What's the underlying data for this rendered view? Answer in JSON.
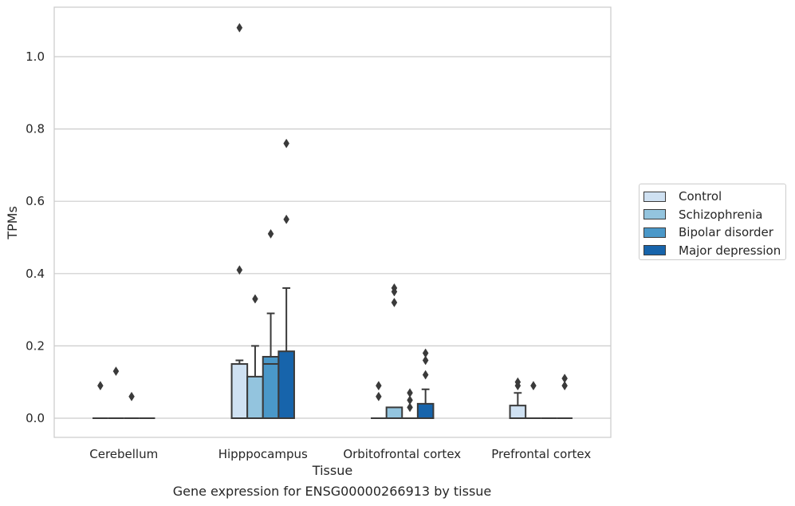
{
  "chart_data": {
    "type": "box",
    "title": "",
    "xlabel": "Tissue",
    "ylabel": "TPMs",
    "ylim": [
      -0.05,
      1.14
    ],
    "yticks": [
      "0.0",
      "0.2",
      "0.4",
      "0.6",
      "0.8",
      "1.0"
    ],
    "ytick_values": [
      0.0,
      0.2,
      0.4,
      0.6,
      0.8,
      1.0
    ],
    "grid": "horizontal",
    "legend_position": "right",
    "categories": [
      "Cerebellum",
      "Hipppocampus",
      "Orbitofrontal cortex",
      "Prefrontal cortex"
    ],
    "series": [
      {
        "name": "Control",
        "color": "#cfe1f2",
        "boxes": [
          {
            "q1": 0.0,
            "median": 0.0,
            "q3": 0.0,
            "whisker_low": 0.0,
            "whisker_high": 0.0,
            "outliers": [
              0.09
            ]
          },
          {
            "q1": 0.0,
            "median": 0.0,
            "q3": 0.15,
            "whisker_low": 0.0,
            "whisker_high": 0.16,
            "outliers": [
              0.41,
              1.08
            ]
          },
          {
            "q1": 0.0,
            "median": 0.0,
            "q3": 0.0,
            "whisker_low": 0.0,
            "whisker_high": 0.0,
            "outliers": [
              0.06,
              0.09
            ]
          },
          {
            "q1": 0.0,
            "median": 0.0,
            "q3": 0.035,
            "whisker_low": 0.0,
            "whisker_high": 0.07,
            "outliers": [
              0.09,
              0.1
            ]
          }
        ]
      },
      {
        "name": "Schizophrenia",
        "color": "#93c4de",
        "boxes": [
          {
            "q1": 0.0,
            "median": 0.0,
            "q3": 0.0,
            "whisker_low": 0.0,
            "whisker_high": 0.0,
            "outliers": [
              0.13
            ]
          },
          {
            "q1": 0.0,
            "median": 0.0,
            "q3": 0.115,
            "whisker_low": 0.0,
            "whisker_high": 0.2,
            "outliers": [
              0.33
            ]
          },
          {
            "q1": 0.0,
            "median": 0.0,
            "q3": 0.03,
            "whisker_low": 0.0,
            "whisker_high": 0.03,
            "outliers": [
              0.32,
              0.35,
              0.36
            ]
          },
          {
            "q1": 0.0,
            "median": 0.0,
            "q3": 0.0,
            "whisker_low": 0.0,
            "whisker_high": 0.0,
            "outliers": [
              0.09
            ]
          }
        ]
      },
      {
        "name": "Bipolar disorder",
        "color": "#4a98c9",
        "boxes": [
          {
            "q1": 0.0,
            "median": 0.0,
            "q3": 0.0,
            "whisker_low": 0.0,
            "whisker_high": 0.0,
            "outliers": [
              0.06
            ]
          },
          {
            "q1": 0.0,
            "median": 0.15,
            "q3": 0.17,
            "whisker_low": 0.0,
            "whisker_high": 0.29,
            "outliers": [
              0.51
            ]
          },
          {
            "q1": 0.0,
            "median": 0.0,
            "q3": 0.0,
            "whisker_low": 0.0,
            "whisker_high": 0.0,
            "outliers": [
              0.03,
              0.05,
              0.07
            ]
          },
          {
            "q1": 0.0,
            "median": 0.0,
            "q3": 0.0,
            "whisker_low": 0.0,
            "whisker_high": 0.0,
            "outliers": []
          }
        ]
      },
      {
        "name": "Major depression",
        "color": "#1764ab",
        "boxes": [
          {
            "q1": 0.0,
            "median": 0.0,
            "q3": 0.0,
            "whisker_low": 0.0,
            "whisker_high": 0.0,
            "outliers": []
          },
          {
            "q1": 0.0,
            "median": 0.0,
            "q3": 0.185,
            "whisker_low": 0.0,
            "whisker_high": 0.36,
            "outliers": [
              0.55,
              0.76
            ]
          },
          {
            "q1": 0.0,
            "median": 0.0,
            "q3": 0.04,
            "whisker_low": 0.0,
            "whisker_high": 0.08,
            "outliers": [
              0.12,
              0.16,
              0.18
            ]
          },
          {
            "q1": 0.0,
            "median": 0.0,
            "q3": 0.0,
            "whisker_low": 0.0,
            "whisker_high": 0.0,
            "outliers": [
              0.09,
              0.11
            ]
          }
        ]
      }
    ]
  },
  "legend": {
    "items": [
      {
        "label": "Control",
        "color": "#cfe1f2"
      },
      {
        "label": "Schizophrenia",
        "color": "#93c4de"
      },
      {
        "label": "Bipolar disorder",
        "color": "#4a98c9"
      },
      {
        "label": "Major depression",
        "color": "#1764ab"
      }
    ]
  },
  "caption": "Gene expression for ENSG00000266913 by tissue"
}
